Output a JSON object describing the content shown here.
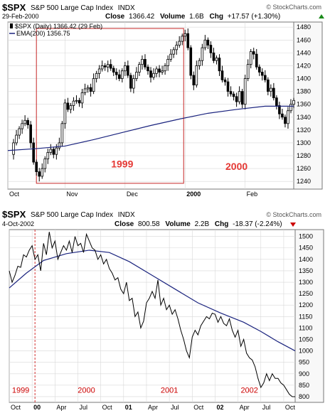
{
  "chart_data": [
    {
      "type": "candlestick",
      "header": {
        "symbol": "$SPX",
        "name": "S&P 500 Large Cap Index",
        "exchange": "INDX",
        "date": "29-Feb-2000",
        "close_label": "Close",
        "close": "1366.42",
        "volume_label": "Volume",
        "volume": "1.6B",
        "chg_label": "Chg",
        "chg": "+17.57 (+1.30%)",
        "chg_arrow": "up",
        "watermark": "© StockCharts.com"
      },
      "legend": [
        {
          "label": "$SPX (Daily) 1366.42 (29 Feb)",
          "kind": "candle"
        },
        {
          "label": "EMA(200) 1356.75",
          "kind": "line",
          "color": "#1a237e"
        }
      ],
      "ylim": [
        1228,
        1488
      ],
      "yticks": [
        1240,
        1260,
        1280,
        1300,
        1320,
        1340,
        1360,
        1380,
        1400,
        1420,
        1440,
        1460,
        1480
      ],
      "xlim": [
        0,
        100
      ],
      "xticks": [
        {
          "x": 0,
          "label": "Oct",
          "bold": false
        },
        {
          "x": 20,
          "label": "Nov",
          "bold": false
        },
        {
          "x": 41,
          "label": "Dec",
          "bold": false
        },
        {
          "x": 62,
          "label": "2000",
          "bold": true
        },
        {
          "x": 83,
          "label": "Feb",
          "bold": false
        }
      ],
      "annotations": [
        {
          "text": "1999",
          "x": 40,
          "y": 1262
        },
        {
          "text": "2000",
          "x": 80,
          "y": 1258
        }
      ],
      "highlight_box": {
        "x_start": 10,
        "x_end": 61.5,
        "y_low": 1237,
        "y_high": 1478
      },
      "close_path": [
        [
          0,
          1282
        ],
        [
          2,
          1300
        ],
        [
          3,
          1312
        ],
        [
          4,
          1322
        ],
        [
          5,
          1330
        ],
        [
          6,
          1335
        ],
        [
          7,
          1328
        ],
        [
          8,
          1300
        ],
        [
          9,
          1270
        ],
        [
          10,
          1255
        ],
        [
          11,
          1248
        ],
        [
          12,
          1260
        ],
        [
          13,
          1275
        ],
        [
          14,
          1285
        ],
        [
          15,
          1290
        ],
        [
          16,
          1282
        ],
        [
          17,
          1292
        ],
        [
          18,
          1300
        ],
        [
          19,
          1330
        ],
        [
          20,
          1362
        ],
        [
          21,
          1352
        ],
        [
          22,
          1358
        ],
        [
          23,
          1365
        ],
        [
          24,
          1366
        ],
        [
          25,
          1362
        ],
        [
          26,
          1378
        ],
        [
          27,
          1384
        ],
        [
          28,
          1386
        ],
        [
          29,
          1380
        ],
        [
          30,
          1400
        ],
        [
          31,
          1408
        ],
        [
          32,
          1415
        ],
        [
          33,
          1420
        ],
        [
          34,
          1418
        ],
        [
          35,
          1422
        ],
        [
          36,
          1416
        ],
        [
          37,
          1410
        ],
        [
          38,
          1406
        ],
        [
          39,
          1400
        ],
        [
          40,
          1412
        ],
        [
          41,
          1420
        ],
        [
          42,
          1405
        ],
        [
          43,
          1385
        ],
        [
          44,
          1400
        ],
        [
          45,
          1410
        ],
        [
          46,
          1422
        ],
        [
          47,
          1430
        ],
        [
          48,
          1418
        ],
        [
          49,
          1412
        ],
        [
          50,
          1402
        ],
        [
          51,
          1408
        ],
        [
          52,
          1415
        ],
        [
          53,
          1410
        ],
        [
          54,
          1412
        ],
        [
          55,
          1420
        ],
        [
          56,
          1430
        ],
        [
          57,
          1438
        ],
        [
          58,
          1445
        ],
        [
          59,
          1452
        ],
        [
          60,
          1458
        ],
        [
          61,
          1466
        ],
        [
          62,
          1470
        ],
        [
          63,
          1448
        ],
        [
          64,
          1405
        ],
        [
          65,
          1390
        ],
        [
          66,
          1420
        ],
        [
          67,
          1428
        ],
        [
          68,
          1448
        ],
        [
          69,
          1460
        ],
        [
          70,
          1452
        ],
        [
          71,
          1440
        ],
        [
          72,
          1428
        ],
        [
          73,
          1432
        ],
        [
          74,
          1412
        ],
        [
          75,
          1398
        ],
        [
          76,
          1395
        ],
        [
          77,
          1380
        ],
        [
          78,
          1376
        ],
        [
          79,
          1372
        ],
        [
          80,
          1364
        ],
        [
          81,
          1380
        ],
        [
          82,
          1360
        ],
        [
          83,
          1400
        ],
        [
          84,
          1422
        ],
        [
          85,
          1442
        ],
        [
          86,
          1438
        ],
        [
          87,
          1418
        ],
        [
          88,
          1410
        ],
        [
          89,
          1405
        ],
        [
          90,
          1398
        ],
        [
          91,
          1380
        ],
        [
          92,
          1385
        ],
        [
          93,
          1370
        ],
        [
          94,
          1358
        ],
        [
          95,
          1345
        ],
        [
          96,
          1340
        ],
        [
          97,
          1330
        ],
        [
          98,
          1350
        ],
        [
          99,
          1360
        ],
        [
          100,
          1366
        ]
      ],
      "ema": [
        [
          0,
          1288
        ],
        [
          10,
          1291
        ],
        [
          20,
          1295
        ],
        [
          30,
          1305
        ],
        [
          40,
          1316
        ],
        [
          50,
          1327
        ],
        [
          60,
          1337
        ],
        [
          70,
          1346
        ],
        [
          80,
          1352
        ],
        [
          90,
          1357
        ],
        [
          100,
          1357
        ]
      ]
    },
    {
      "type": "line",
      "header": {
        "symbol": "$SPX",
        "name": "S&P 500 Large Cap Index",
        "exchange": "INDX",
        "date": "4-Oct-2002",
        "close_label": "Close",
        "close": "800.58",
        "volume_label": "Volume",
        "volume": "2.2B",
        "chg_label": "Chg",
        "chg": "-18.37 (-2.24%)",
        "chg_arrow": "down",
        "watermark": "© StockCharts.com"
      },
      "ylim": [
        775,
        1530
      ],
      "yticks": [
        800,
        850,
        900,
        950,
        1000,
        1050,
        1100,
        1150,
        1200,
        1250,
        1300,
        1350,
        1400,
        1450,
        1500
      ],
      "xlim": [
        0,
        100
      ],
      "xticks": [
        {
          "x": 0,
          "label": "Oct",
          "bold": false
        },
        {
          "x": 8,
          "label": "00",
          "bold": true
        },
        {
          "x": 16,
          "label": "Apr",
          "bold": false
        },
        {
          "x": 24,
          "label": "Jul",
          "bold": false
        },
        {
          "x": 32,
          "label": "Oct",
          "bold": false
        },
        {
          "x": 40,
          "label": "01",
          "bold": true
        },
        {
          "x": 48,
          "label": "Apr",
          "bold": false
        },
        {
          "x": 56,
          "label": "Jul",
          "bold": false
        },
        {
          "x": 64,
          "label": "Oct",
          "bold": false
        },
        {
          "x": 72,
          "label": "02",
          "bold": true
        },
        {
          "x": 80,
          "label": "Apr",
          "bold": false
        },
        {
          "x": 88,
          "label": "Jul",
          "bold": false
        },
        {
          "x": 96,
          "label": "Oct",
          "bold": false
        }
      ],
      "annotations": [
        {
          "text": "1999",
          "x": 4,
          "y": 830,
          "color": "#cc0000"
        },
        {
          "text": "2000",
          "x": 27,
          "y": 830,
          "color": "#cc0000"
        },
        {
          "text": "2001",
          "x": 56,
          "y": 830,
          "color": "#cc0000"
        },
        {
          "text": "2002",
          "x": 84,
          "y": 830,
          "color": "#cc0000"
        }
      ],
      "divider_x": 9,
      "close": [
        [
          0,
          1350
        ],
        [
          1,
          1300
        ],
        [
          2,
          1330
        ],
        [
          3,
          1370
        ],
        [
          4,
          1365
        ],
        [
          5,
          1420
        ],
        [
          6,
          1410
        ],
        [
          7,
          1440
        ],
        [
          8,
          1460
        ],
        [
          9,
          1400
        ],
        [
          10,
          1420
        ],
        [
          11,
          1350
        ],
        [
          12,
          1470
        ],
        [
          13,
          1420
        ],
        [
          14,
          1520
        ],
        [
          15,
          1450
        ],
        [
          16,
          1480
        ],
        [
          17,
          1400
        ],
        [
          18,
          1430
        ],
        [
          19,
          1460
        ],
        [
          20,
          1440
        ],
        [
          21,
          1480
        ],
        [
          22,
          1430
        ],
        [
          23,
          1500
        ],
        [
          24,
          1460
        ],
        [
          25,
          1470
        ],
        [
          26,
          1430
        ],
        [
          27,
          1510
        ],
        [
          28,
          1480
        ],
        [
          29,
          1450
        ],
        [
          30,
          1440
        ],
        [
          31,
          1400
        ],
        [
          32,
          1420
        ],
        [
          33,
          1380
        ],
        [
          34,
          1400
        ],
        [
          35,
          1360
        ],
        [
          36,
          1340
        ],
        [
          37,
          1310
        ],
        [
          38,
          1320
        ],
        [
          39,
          1270
        ],
        [
          40,
          1250
        ],
        [
          41,
          1300
        ],
        [
          42,
          1220
        ],
        [
          43,
          1230
        ],
        [
          44,
          1150
        ],
        [
          45,
          1170
        ],
        [
          46,
          1100
        ],
        [
          47,
          1130
        ],
        [
          48,
          1210
        ],
        [
          49,
          1230
        ],
        [
          50,
          1260
        ],
        [
          51,
          1230
        ],
        [
          52,
          1310
        ],
        [
          53,
          1200
        ],
        [
          54,
          1230
        ],
        [
          55,
          1180
        ],
        [
          56,
          1200
        ],
        [
          57,
          1160
        ],
        [
          58,
          1180
        ],
        [
          59,
          1140
        ],
        [
          60,
          1090
        ],
        [
          61,
          1050
        ],
        [
          62,
          1000
        ],
        [
          63,
          970
        ],
        [
          64,
          1060
        ],
        [
          65,
          1090
        ],
        [
          66,
          1070
        ],
        [
          67,
          1110
        ],
        [
          68,
          1130
        ],
        [
          69,
          1150
        ],
        [
          70,
          1140
        ],
        [
          71,
          1165
        ],
        [
          72,
          1160
        ],
        [
          73,
          1125
        ],
        [
          74,
          1150
        ],
        [
          75,
          1120
        ],
        [
          76,
          1110
        ],
        [
          77,
          1140
        ],
        [
          78,
          1090
        ],
        [
          79,
          1060
        ],
        [
          80,
          1090
        ],
        [
          81,
          1020
        ],
        [
          82,
          1050
        ],
        [
          83,
          990
        ],
        [
          84,
          970
        ],
        [
          85,
          960
        ],
        [
          86,
          930
        ],
        [
          87,
          880
        ],
        [
          88,
          840
        ],
        [
          89,
          860
        ],
        [
          90,
          900
        ],
        [
          91,
          870
        ],
        [
          92,
          900
        ],
        [
          93,
          880
        ],
        [
          94,
          880
        ],
        [
          95,
          860
        ],
        [
          96,
          850
        ],
        [
          97,
          830
        ],
        [
          98,
          810
        ],
        [
          99,
          800
        ],
        [
          100,
          800
        ]
      ],
      "ema": [
        [
          0,
          1275
        ],
        [
          6,
          1340
        ],
        [
          12,
          1395
        ],
        [
          20,
          1425
        ],
        [
          28,
          1440
        ],
        [
          35,
          1430
        ],
        [
          42,
          1390
        ],
        [
          50,
          1330
        ],
        [
          58,
          1270
        ],
        [
          66,
          1210
        ],
        [
          74,
          1165
        ],
        [
          82,
          1125
        ],
        [
          88,
          1085
        ],
        [
          94,
          1040
        ],
        [
          100,
          1000
        ]
      ]
    }
  ]
}
